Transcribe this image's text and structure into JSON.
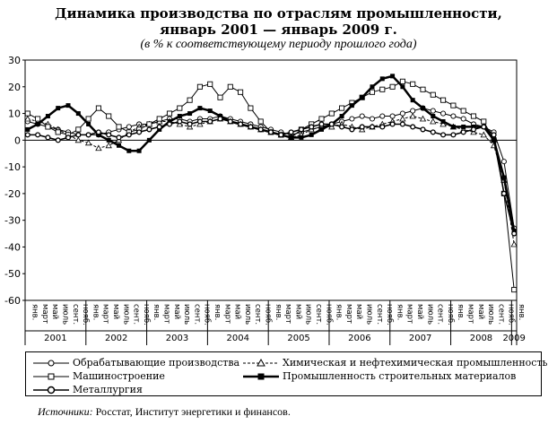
{
  "title_line1": "Динамика производства по отраслям промышленности,",
  "title_line2": "январь 2001 — январь 2009 г.",
  "subtitle": "(в % к соответствующему периоду прошлого года)",
  "source_label": "Источники:",
  "source_text": "Росстат, Институт энергетики и финансов.",
  "chart_data": {
    "type": "line",
    "ylim": [
      -60,
      30
    ],
    "yticks": [
      30,
      20,
      10,
      0,
      -10,
      -20,
      -30,
      -40,
      -50,
      -60
    ],
    "month_labels": [
      "янв.",
      "март",
      "май",
      "июль",
      "сент.",
      "нояб."
    ],
    "years": [
      "2001",
      "2002",
      "2003",
      "2004",
      "2005",
      "2006",
      "2007",
      "2008",
      "2009"
    ],
    "x": [
      "2001-01",
      "2001-03",
      "2001-05",
      "2001-07",
      "2001-09",
      "2001-11",
      "2002-01",
      "2002-03",
      "2002-05",
      "2002-07",
      "2002-09",
      "2002-11",
      "2003-01",
      "2003-03",
      "2003-05",
      "2003-07",
      "2003-09",
      "2003-11",
      "2004-01",
      "2004-03",
      "2004-05",
      "2004-07",
      "2004-09",
      "2004-11",
      "2005-01",
      "2005-03",
      "2005-05",
      "2005-07",
      "2005-09",
      "2005-11",
      "2006-01",
      "2006-03",
      "2006-05",
      "2006-07",
      "2006-09",
      "2006-11",
      "2007-01",
      "2007-03",
      "2007-05",
      "2007-07",
      "2007-09",
      "2007-11",
      "2008-01",
      "2008-03",
      "2008-05",
      "2008-07",
      "2008-09",
      "2008-11",
      "2009-01"
    ],
    "series": [
      {
        "name": "Обрабатывающие производства",
        "color": "#000000",
        "marker": "circle",
        "values": [
          7,
          6,
          5,
          4,
          3,
          2,
          2,
          2,
          3,
          4,
          5,
          6,
          6,
          7,
          8,
          8,
          7,
          8,
          8,
          9,
          8,
          7,
          6,
          5,
          4,
          3,
          2,
          3,
          4,
          5,
          6,
          7,
          8,
          9,
          8,
          9,
          9,
          10,
          11,
          12,
          11,
          10,
          9,
          8,
          6,
          5,
          3,
          -8,
          -33
        ]
      },
      {
        "name": "Химическая и нефтехимическая промышленность",
        "color": "#000000",
        "marker": "triangle",
        "values": [
          8,
          7,
          6,
          4,
          2,
          0,
          -1,
          -3,
          -2,
          0,
          3,
          5,
          6,
          7,
          7,
          6,
          5,
          6,
          7,
          8,
          7,
          6,
          5,
          4,
          3,
          2,
          1,
          2,
          4,
          5,
          5,
          6,
          5,
          4,
          5,
          6,
          7,
          8,
          9,
          8,
          7,
          6,
          5,
          4,
          3,
          2,
          -2,
          -15,
          -39
        ]
      },
      {
        "name": "Машиностроение",
        "color": "#000000",
        "marker": "square",
        "values": [
          10,
          8,
          5,
          3,
          2,
          4,
          8,
          12,
          9,
          5,
          3,
          4,
          6,
          8,
          10,
          12,
          15,
          20,
          21,
          16,
          20,
          18,
          12,
          7,
          3,
          2,
          1,
          4,
          6,
          8,
          10,
          12,
          14,
          16,
          18,
          19,
          20,
          22,
          21,
          19,
          17,
          15,
          13,
          11,
          9,
          7,
          0,
          -20,
          -56
        ]
      },
      {
        "name": "Промышленность строительных материалов",
        "color": "#000000",
        "marker": "filled-square",
        "values": [
          4,
          6,
          9,
          12,
          13,
          10,
          6,
          2,
          0,
          -2,
          -4,
          -4,
          0,
          4,
          7,
          9,
          10,
          12,
          11,
          9,
          7,
          6,
          5,
          4,
          3,
          2,
          1,
          1,
          2,
          4,
          6,
          9,
          13,
          16,
          20,
          23,
          24,
          20,
          15,
          12,
          9,
          7,
          5,
          5,
          5,
          5,
          0,
          -14,
          -34
        ]
      },
      {
        "name": "Металлургия",
        "color": "#000000",
        "marker": "circle-open",
        "values": [
          2,
          2,
          1,
          0,
          1,
          2,
          2,
          3,
          2,
          1,
          2,
          3,
          4,
          5,
          6,
          7,
          6,
          7,
          7,
          8,
          7,
          6,
          5,
          4,
          3,
          2,
          3,
          4,
          5,
          6,
          6,
          5,
          4,
          5,
          5,
          5,
          6,
          6,
          5,
          4,
          3,
          2,
          2,
          3,
          4,
          5,
          2,
          -20,
          -35
        ]
      }
    ]
  }
}
